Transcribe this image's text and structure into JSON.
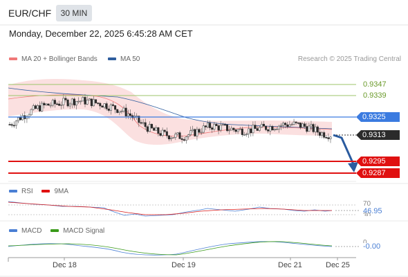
{
  "header": {
    "pair": "EUR/CHF",
    "timeframe": "30 MIN",
    "datetime": "Monday, December 22, 2025 6:45:28 AM CET"
  },
  "legend": {
    "items": [
      {
        "label": "MA 20 + Bollinger Bands",
        "color": "#f07878"
      },
      {
        "label": "MA 50",
        "color": "#2f5d9e"
      }
    ],
    "credit": "Research © 2025 Trading Central"
  },
  "levels": [
    {
      "value": 0.9347,
      "label": "0.9347",
      "kind": "target",
      "color": "#88b84a"
    },
    {
      "value": 0.9339,
      "label": "0.9339",
      "kind": "target",
      "color": "#88b84a"
    },
    {
      "value": 0.9325,
      "label": "0.9325",
      "kind": "pivot",
      "color": "#3b7be0"
    },
    {
      "value": 0.9313,
      "label": "0.9313",
      "kind": "last",
      "color": "#2b2b2b"
    },
    {
      "value": 0.9295,
      "label": "0.9295",
      "kind": "support",
      "color": "#e01010"
    },
    {
      "value": 0.9287,
      "label": "0.9287",
      "kind": "support",
      "color": "#e01010"
    }
  ],
  "rsi": {
    "legend": [
      {
        "label": "RSI",
        "color": "#4a7fd4"
      },
      {
        "label": "9MA",
        "color": "#e01010"
      }
    ],
    "tick_70": "70",
    "tick_30": "30",
    "value": "46.95"
  },
  "macd": {
    "legend": [
      {
        "label": "MACD",
        "color": "#4a7fd4"
      },
      {
        "label": "MACD Signal",
        "color": "#3a9a1a"
      }
    ],
    "tick_0": "0",
    "value": "-0.00"
  },
  "xaxis": {
    "ticks": [
      "Dec 18",
      "Dec 19",
      "Dec 21",
      "Dec 25"
    ]
  },
  "chart_data": {
    "type": "candlestick",
    "title": "EUR/CHF",
    "timeframe": "30 MIN",
    "x_ticks": [
      "Dec 18",
      "Dec 19",
      "Dec 21",
      "Dec 25"
    ],
    "ylim": [
      0.9284,
      0.9356
    ],
    "close_approx": [
      0.932,
      0.9324,
      0.9328,
      0.9331,
      0.9333,
      0.9334,
      0.9335,
      0.9336,
      0.9336,
      0.9335,
      0.9334,
      0.9332,
      0.933,
      0.9327,
      0.9322,
      0.9318,
      0.9315,
      0.9313,
      0.9312,
      0.9312,
      0.9314,
      0.9317,
      0.9319,
      0.9318,
      0.9317,
      0.9316,
      0.9316,
      0.9317,
      0.9318,
      0.9319,
      0.932,
      0.932,
      0.9319,
      0.9317,
      0.9314,
      0.9313
    ],
    "last_price": 0.9313,
    "targets": [
      0.9347,
      0.9339
    ],
    "pivot": 0.9325,
    "supports": [
      0.9295,
      0.9287
    ],
    "forecast": "down toward 0.9287"
  }
}
